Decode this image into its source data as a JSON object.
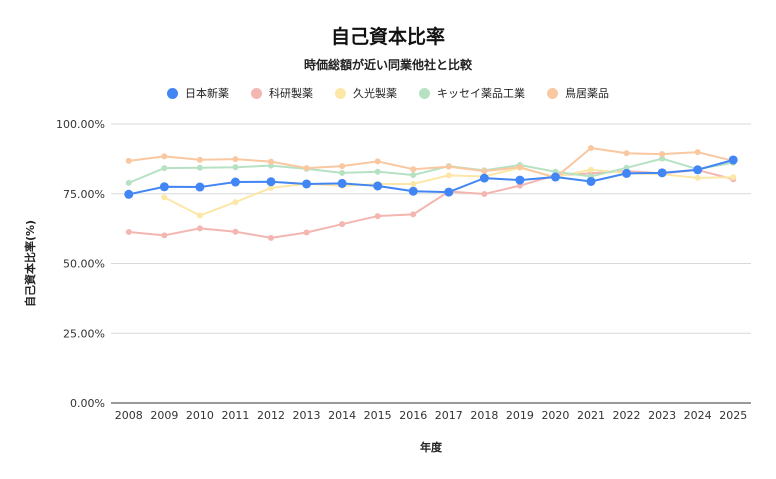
{
  "chart_data": {
    "type": "line",
    "title": "自己資本比率",
    "subtitle": "時価総額が近い同業他社と比較",
    "xlabel": "年度",
    "ylabel": "自己資本比率(%)",
    "ylim": [
      0,
      100
    ],
    "yticks": [
      "0.00%",
      "25.00%",
      "50.00%",
      "75.00%",
      "100.00%"
    ],
    "ytick_values": [
      0,
      25,
      50,
      75,
      100
    ],
    "categories": [
      "2008",
      "2009",
      "2010",
      "2011",
      "2012",
      "2013",
      "2014",
      "2015",
      "2016",
      "2017",
      "2018",
      "2019",
      "2020",
      "2021",
      "2022",
      "2023",
      "2024",
      "2025"
    ],
    "series": [
      {
        "name": "日本新薬",
        "color": "#4285f4",
        "highlight": true,
        "values": [
          74.8,
          77.5,
          77.4,
          79.2,
          79.3,
          78.5,
          78.7,
          77.8,
          75.9,
          75.6,
          80.6,
          79.9,
          81.0,
          79.4,
          82.3,
          82.5,
          83.6,
          87.1
        ]
      },
      {
        "name": "科研製薬",
        "color": "#f4b6b1",
        "highlight": false,
        "values": [
          61.3,
          60.1,
          62.6,
          61.4,
          59.2,
          61.1,
          64.1,
          67.0,
          67.6,
          75.8,
          74.9,
          77.9,
          81.6,
          82.3,
          83.1,
          82.3,
          83.5,
          80.2
        ]
      },
      {
        "name": "久光製薬",
        "color": "#fde7a6",
        "highlight": false,
        "values": [
          null,
          73.7,
          67.2,
          72.0,
          77.1,
          78.6,
          77.8,
          78.5,
          78.5,
          81.6,
          81.2,
          84.3,
          81.0,
          83.6,
          82.4,
          82.0,
          80.7,
          80.9
        ]
      },
      {
        "name": "キッセイ薬品工業",
        "color": "#b7e1c3",
        "highlight": false,
        "values": [
          78.9,
          84.2,
          84.3,
          84.5,
          85.1,
          83.9,
          82.5,
          82.9,
          81.7,
          84.9,
          83.4,
          85.3,
          82.9,
          81.2,
          84.3,
          87.6,
          83.8,
          86.1
        ]
      },
      {
        "name": "鳥居薬品",
        "color": "#f9c8a0",
        "highlight": false,
        "values": [
          86.8,
          88.4,
          87.2,
          87.4,
          86.5,
          84.2,
          84.9,
          86.6,
          83.8,
          84.7,
          83.1,
          84.5,
          80.8,
          91.4,
          89.5,
          89.2,
          89.9,
          86.8
        ]
      }
    ]
  }
}
